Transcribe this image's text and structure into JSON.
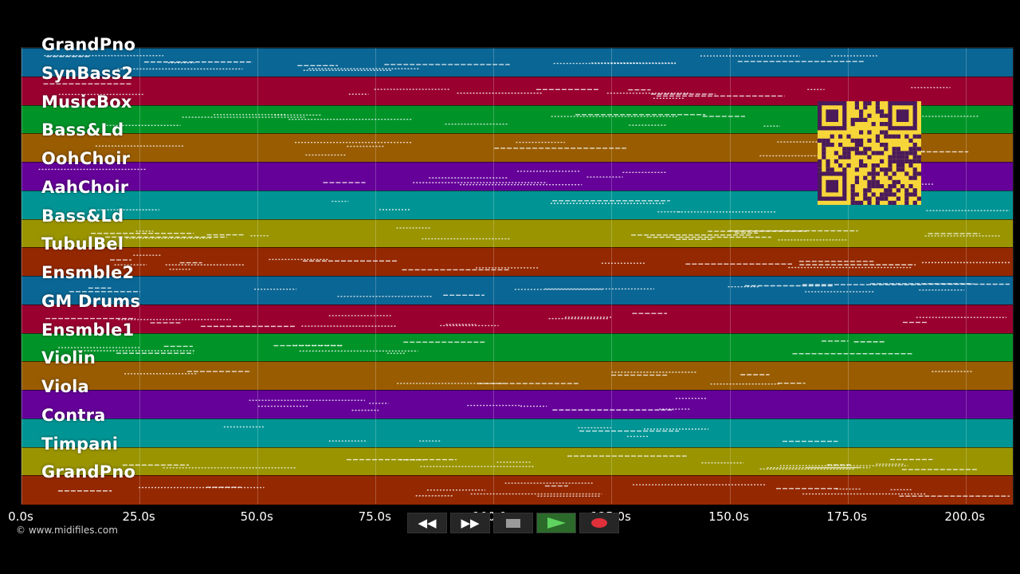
{
  "tracks": [
    {
      "name": "GrandPno",
      "color": "#0a6694"
    },
    {
      "name": "SynBass2",
      "color": "#99002f"
    },
    {
      "name": "MusicBox",
      "color": "#009428"
    },
    {
      "name": "Bass&Ld",
      "color": "#995c00"
    },
    {
      "name": "OohChoir",
      "color": "#650099"
    },
    {
      "name": "AahChoir",
      "color": "#009494"
    },
    {
      "name": "Bass&Ld",
      "color": "#999400"
    },
    {
      "name": "TubulBel",
      "color": "#942800"
    },
    {
      "name": "Ensmble2",
      "color": "#0a6694"
    },
    {
      "name": "GM Drums",
      "color": "#99002f"
    },
    {
      "name": "Ensmble1",
      "color": "#009428"
    },
    {
      "name": "Violin",
      "color": "#995c00"
    },
    {
      "name": "Viola",
      "color": "#650099"
    },
    {
      "name": "Contra",
      "color": "#009494"
    },
    {
      "name": "Timpani",
      "color": "#999400"
    },
    {
      "name": "GrandPno",
      "color": "#942800"
    }
  ],
  "time_axis": {
    "ticks": [
      "0.0s",
      "25.0s",
      "50.0s",
      "75.0s",
      "100.0s",
      "125.0s",
      "150.0s",
      "175.0s",
      "200.0s"
    ],
    "max_seconds": 210
  },
  "credit": "© www.midifiles.com",
  "transport": {
    "rewind": "◀◀",
    "fast_forward": "▶▶",
    "stop_icon": "stop-icon",
    "play_icon": "play-icon",
    "record_icon": "record-icon"
  }
}
